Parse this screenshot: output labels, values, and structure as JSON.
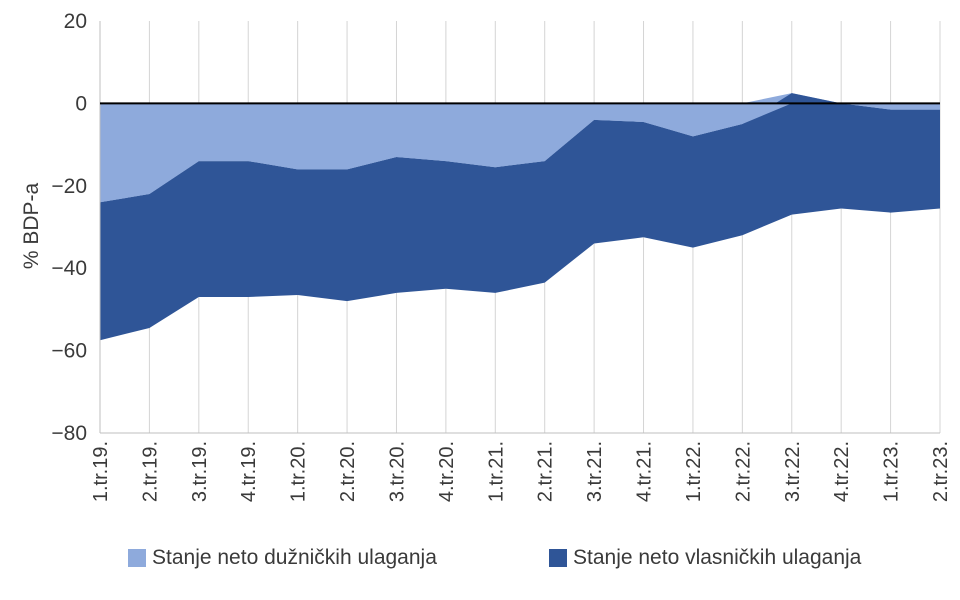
{
  "chart_data": {
    "type": "area",
    "ylabel": "% BDP-a",
    "xlabel": "",
    "title": "",
    "ylim": [
      -80,
      20
    ],
    "yticks": [
      20,
      0,
      -20,
      -40,
      -60,
      -80
    ],
    "ytick_labels": [
      "20",
      "0",
      "−20",
      "−40",
      "−60",
      "−80"
    ],
    "x": [
      "1.tr.19.",
      "2.tr.19.",
      "3.tr.19.",
      "4.tr.19.",
      "1.tr.20.",
      "2.tr.20.",
      "3.tr.20.",
      "4.tr.20.",
      "1.tr.21.",
      "2.tr.21.",
      "3.tr.21.",
      "4.tr.21.",
      "1.tr.22.",
      "2.tr.22.",
      "3.tr.22.",
      "4.tr.22.",
      "1.tr.23.",
      "2.tr.23."
    ],
    "grid": "vertical",
    "legend_position": "bottom",
    "series": [
      {
        "name": "Stanje neto dužničkih ulaganja",
        "color": "#8EAADC",
        "values": [
          -24,
          -22,
          -14,
          -14,
          -16,
          -16,
          -13,
          -14,
          -15.5,
          -14,
          -4,
          -4.5,
          -8,
          -5,
          2.5,
          0,
          -1.5,
          -1.5
        ]
      },
      {
        "name": "Stanje neto vlasničkih ulaganja",
        "color": "#2F5597",
        "values": [
          -33.5,
          -32.5,
          -33,
          -33,
          -30.5,
          -32,
          -33,
          -31,
          -30.5,
          -29.5,
          -30,
          -28,
          -27,
          -27,
          -27,
          -25.5,
          -25,
          -24
        ]
      }
    ]
  }
}
